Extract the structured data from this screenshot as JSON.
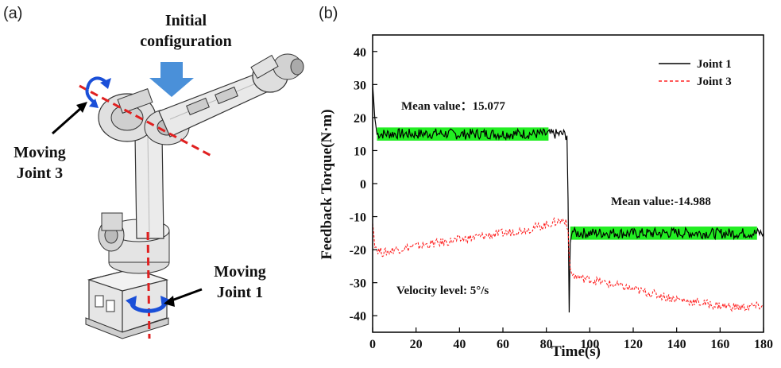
{
  "panel_a": {
    "label": "(a)",
    "initial_title_line1": "Initial",
    "initial_title_line2": "configuration",
    "joint3_label_line1": "Moving",
    "joint3_label_line2": "Joint 3",
    "joint1_label_line1": "Moving",
    "joint1_label_line2": "Joint 1",
    "colors": {
      "arrow_blue": "#4a90d9",
      "axis_red": "#e02020",
      "robot_gray": "#d9d9d9"
    }
  },
  "panel_b": {
    "label": "(b)",
    "annotation_mean1": "Mean value：15.077",
    "annotation_mean2": "Mean value:-14.988",
    "annotation_velocity": "Velocity level: 5°/s"
  },
  "chart_data": {
    "type": "line",
    "xlabel": "Time(s)",
    "ylabel": "Feedback Torque(N·m)",
    "xlim": [
      0,
      180
    ],
    "ylim": [
      -45,
      45
    ],
    "x_ticks": [
      0,
      20,
      40,
      60,
      80,
      100,
      120,
      140,
      160,
      180
    ],
    "y_ticks": [
      40,
      30,
      20,
      10,
      0,
      -10,
      -20,
      -30,
      -40
    ],
    "grid": false,
    "legend": "top-right",
    "series": [
      {
        "name": "Joint 1",
        "color": "#000000",
        "style": "solid",
        "x": [
          0,
          1,
          2,
          10,
          20,
          30,
          40,
          50,
          60,
          70,
          80,
          88,
          89.5,
          90,
          90.5,
          91,
          92,
          93,
          95,
          100,
          110,
          120,
          130,
          140,
          150,
          160,
          170,
          180
        ],
        "y": [
          30,
          20,
          15,
          15.1,
          15.0,
          15.2,
          14.9,
          15.1,
          15.0,
          15.1,
          15.0,
          15.0,
          14.5,
          -5,
          -39,
          -18,
          -14,
          -15,
          -15,
          -15.0,
          -14.9,
          -15.1,
          -15.0,
          -14.9,
          -15.0,
          -15.1,
          -15.0,
          -15.0
        ]
      },
      {
        "name": "Joint 3",
        "color": "#ff2020",
        "style": "dashed",
        "x": [
          0,
          1,
          2,
          5,
          10,
          20,
          30,
          40,
          50,
          60,
          70,
          80,
          85,
          89,
          90,
          90.5,
          91,
          93,
          95,
          100,
          110,
          120,
          130,
          140,
          150,
          160,
          170,
          180
        ],
        "y": [
          -12,
          -18,
          -20,
          -21,
          -20,
          -19,
          -18,
          -17,
          -16,
          -15,
          -14,
          -12.5,
          -11.5,
          -11,
          -14,
          -22,
          -27,
          -28,
          -28.5,
          -29,
          -30.5,
          -32,
          -33.5,
          -35,
          -36,
          -37,
          -37.5,
          -37
        ]
      }
    ],
    "highlight_bands": [
      {
        "x_range": [
          2,
          81
        ],
        "y_range": [
          13,
          17
        ],
        "color": "#22ee22"
      },
      {
        "x_range": [
          91,
          177
        ],
        "y_range": [
          -17,
          -13
        ],
        "color": "#22ee22"
      }
    ]
  }
}
